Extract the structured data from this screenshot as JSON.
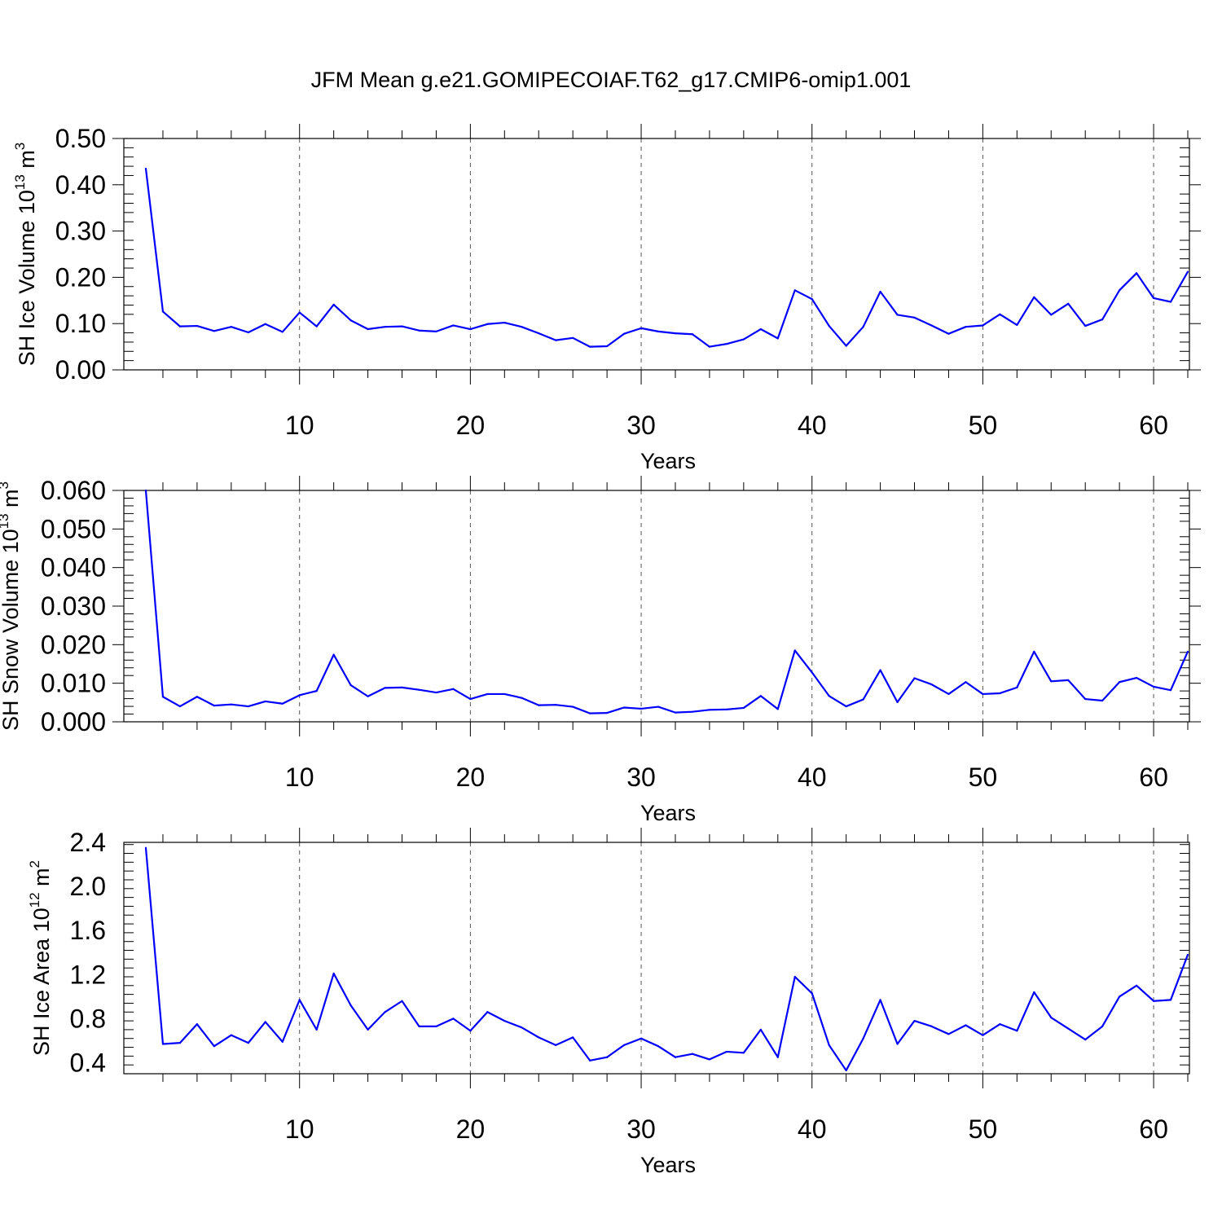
{
  "title": "JFM Mean g.e21.GOMIPECOIAF.T62_g17.CMIP6-omip1.001",
  "line_color": "#0000ff",
  "chart_data": [
    {
      "type": "line",
      "ylabel_main": "SH Ice Volume 10",
      "ylabel_exp": "13",
      "ylabel_unit": " m",
      "ylabel_unit_exp": "3",
      "xlabel": "Years",
      "ylim": [
        0,
        0.5
      ],
      "xlim": [
        1,
        62
      ],
      "yticks": [
        0.0,
        0.1,
        0.2,
        0.3,
        0.4,
        0.5
      ],
      "ytick_labels": [
        "0.00",
        "0.10",
        "0.20",
        "0.30",
        "0.40",
        "0.50"
      ],
      "xticks": [
        10,
        20,
        30,
        40,
        50,
        60
      ],
      "xtick_labels": [
        "10",
        "20",
        "30",
        "40",
        "50",
        "60"
      ],
      "grid": "x-dashed",
      "x": [
        1,
        2,
        3,
        4,
        5,
        6,
        7,
        8,
        9,
        10,
        11,
        12,
        13,
        14,
        15,
        16,
        17,
        18,
        19,
        20,
        21,
        22,
        23,
        24,
        25,
        26,
        27,
        28,
        29,
        30,
        31,
        32,
        33,
        34,
        35,
        36,
        37,
        38,
        39,
        40,
        41,
        42,
        43,
        44,
        45,
        46,
        47,
        48,
        49,
        50,
        51,
        52,
        53,
        54,
        55,
        56,
        57,
        58,
        59,
        60,
        61,
        62
      ],
      "series": [
        {
          "values": [
            0.435,
            0.126,
            0.094,
            0.095,
            0.084,
            0.093,
            0.081,
            0.099,
            0.082,
            0.124,
            0.094,
            0.141,
            0.107,
            0.088,
            0.093,
            0.094,
            0.085,
            0.083,
            0.096,
            0.088,
            0.099,
            0.102,
            0.093,
            0.079,
            0.064,
            0.069,
            0.05,
            0.051,
            0.078,
            0.09,
            0.083,
            0.079,
            0.077,
            0.05,
            0.056,
            0.066,
            0.088,
            0.068,
            0.172,
            0.153,
            0.095,
            0.052,
            0.093,
            0.169,
            0.119,
            0.113,
            0.096,
            0.078,
            0.093,
            0.096,
            0.12,
            0.097,
            0.157,
            0.119,
            0.143,
            0.095,
            0.109,
            0.172,
            0.209,
            0.155,
            0.147,
            0.212
          ]
        }
      ]
    },
    {
      "type": "line",
      "ylabel_main": "SH Snow Volume 10",
      "ylabel_exp": "13",
      "ylabel_unit": " m",
      "ylabel_unit_exp": "3",
      "xlabel": "Years",
      "ylim": [
        0,
        0.06
      ],
      "xlim": [
        1,
        62
      ],
      "yticks": [
        0.0,
        0.01,
        0.02,
        0.03,
        0.04,
        0.05,
        0.06
      ],
      "ytick_labels": [
        "0.000",
        "0.010",
        "0.020",
        "0.030",
        "0.040",
        "0.050",
        "0.060"
      ],
      "xticks": [
        10,
        20,
        30,
        40,
        50,
        60
      ],
      "xtick_labels": [
        "10",
        "20",
        "30",
        "40",
        "50",
        "60"
      ],
      "grid": "x-dashed",
      "x": [
        1,
        2,
        3,
        4,
        5,
        6,
        7,
        8,
        9,
        10,
        11,
        12,
        13,
        14,
        15,
        16,
        17,
        18,
        19,
        20,
        21,
        22,
        23,
        24,
        25,
        26,
        27,
        28,
        29,
        30,
        31,
        32,
        33,
        34,
        35,
        36,
        37,
        38,
        39,
        40,
        41,
        42,
        43,
        44,
        45,
        46,
        47,
        48,
        49,
        50,
        51,
        52,
        53,
        54,
        55,
        56,
        57,
        58,
        59,
        60,
        61,
        62
      ],
      "series": [
        {
          "values": [
            0.06,
            0.0065,
            0.004,
            0.0065,
            0.0042,
            0.0045,
            0.004,
            0.0053,
            0.0047,
            0.0069,
            0.008,
            0.0174,
            0.0095,
            0.0066,
            0.0088,
            0.0089,
            0.0083,
            0.0076,
            0.0085,
            0.0059,
            0.0072,
            0.0072,
            0.0062,
            0.0043,
            0.0044,
            0.0039,
            0.0022,
            0.0023,
            0.0037,
            0.0034,
            0.0039,
            0.0024,
            0.0026,
            0.0031,
            0.0032,
            0.0036,
            0.0067,
            0.0033,
            0.0185,
            0.0128,
            0.0067,
            0.004,
            0.0058,
            0.0134,
            0.0051,
            0.0113,
            0.0097,
            0.0072,
            0.0103,
            0.0072,
            0.0074,
            0.0089,
            0.0182,
            0.0105,
            0.0108,
            0.0059,
            0.0055,
            0.0103,
            0.0114,
            0.0091,
            0.0082,
            0.0182
          ]
        }
      ]
    },
    {
      "type": "line",
      "ylabel_main": "SH Ice Area 10",
      "ylabel_exp": "12",
      "ylabel_unit": " m",
      "ylabel_unit_exp": "2",
      "xlabel": "Years",
      "ylim": [
        0.3,
        2.4
      ],
      "xlim": [
        1,
        62
      ],
      "yticks": [
        0.4,
        0.8,
        1.2,
        1.6,
        2.0,
        2.4
      ],
      "ytick_labels": [
        "0.4",
        "0.8",
        "1.2",
        "1.6",
        "2.0",
        "2.4"
      ],
      "xticks": [
        10,
        20,
        30,
        40,
        50,
        60
      ],
      "xtick_labels": [
        "10",
        "20",
        "30",
        "40",
        "50",
        "60"
      ],
      "grid": "x-dashed",
      "x": [
        1,
        2,
        3,
        4,
        5,
        6,
        7,
        8,
        9,
        10,
        11,
        12,
        13,
        14,
        15,
        16,
        17,
        18,
        19,
        20,
        21,
        22,
        23,
        24,
        25,
        26,
        27,
        28,
        29,
        30,
        31,
        32,
        33,
        34,
        35,
        36,
        37,
        38,
        39,
        40,
        41,
        42,
        43,
        44,
        45,
        46,
        47,
        48,
        49,
        50,
        51,
        52,
        53,
        54,
        55,
        56,
        57,
        58,
        59,
        60,
        61,
        62
      ],
      "series": [
        {
          "values": [
            2.35,
            0.57,
            0.58,
            0.75,
            0.55,
            0.65,
            0.58,
            0.77,
            0.59,
            0.97,
            0.7,
            1.21,
            0.92,
            0.7,
            0.86,
            0.96,
            0.73,
            0.73,
            0.8,
            0.69,
            0.86,
            0.78,
            0.72,
            0.63,
            0.56,
            0.63,
            0.42,
            0.45,
            0.56,
            0.62,
            0.55,
            0.45,
            0.48,
            0.43,
            0.5,
            0.49,
            0.7,
            0.45,
            1.18,
            1.03,
            0.56,
            0.33,
            0.62,
            0.97,
            0.57,
            0.78,
            0.73,
            0.66,
            0.74,
            0.65,
            0.75,
            0.69,
            1.04,
            0.81,
            0.71,
            0.61,
            0.73,
            1.0,
            1.1,
            0.96,
            0.97,
            1.38
          ]
        }
      ]
    }
  ]
}
